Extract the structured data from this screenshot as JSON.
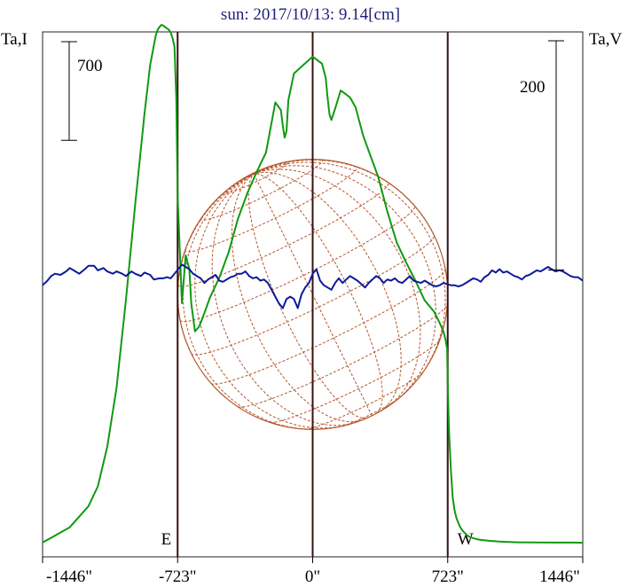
{
  "title": "sun: 2017/10/13: 9.14[cm]",
  "colors": {
    "intensity": "#119911",
    "polarization": "#0b1a9b",
    "disk": "#b5562c",
    "limb_lines": "#3a1010",
    "title": "#20207a"
  },
  "chart_data": {
    "type": "line",
    "title": "sun: 2017/10/13: 9.14[cm]",
    "xlim": [
      -1446,
      1446
    ],
    "x_tick_values": [
      -1446,
      -723,
      0,
      723,
      1446
    ],
    "x_tick_labels": [
      "-1446\"",
      "-723\"",
      "0\"",
      "723\"",
      "1446\""
    ],
    "left_axis_label": "Ta,I",
    "right_axis_label": "Ta,V",
    "left_scale_bar": {
      "label": "700",
      "value": 700
    },
    "right_scale_bar": {
      "label": "200",
      "value": 200
    },
    "vertical_markers": [
      {
        "x": -723,
        "label": "E"
      },
      {
        "x": 0,
        "label": ""
      },
      {
        "x": 723,
        "label": "W"
      }
    ],
    "grid": false,
    "series": [
      {
        "name": "Ta,I",
        "axis": "left",
        "color": "#119911",
        "ylim": [
          -100,
          3625
        ],
        "x": [
          -1446,
          -1400,
          -1300,
          -1200,
          -1150,
          -1100,
          -1050,
          -1000,
          -950,
          -900,
          -870,
          -850,
          -840,
          -830,
          -820,
          -810,
          -800,
          -790,
          -780,
          -770,
          -760,
          -750,
          -740,
          -730,
          -723,
          -700,
          -680,
          -660,
          -650,
          -630,
          -610,
          -600,
          -580,
          -550,
          -500,
          -450,
          -400,
          -350,
          -300,
          -250,
          -200,
          -170,
          -160,
          -150,
          -140,
          -130,
          -100,
          -50,
          0,
          50,
          70,
          80,
          90,
          100,
          120,
          150,
          170,
          200,
          230,
          250,
          270,
          300,
          350,
          400,
          450,
          500,
          550,
          600,
          650,
          680,
          700,
          710,
          720,
          723,
          730,
          740,
          750,
          760,
          770,
          780,
          790,
          800,
          810,
          820,
          830,
          840,
          860,
          880,
          900,
          950,
          1000,
          1050,
          1100,
          1200,
          1300,
          1400,
          1446
        ],
        "y": [
          2,
          35,
          110,
          260,
          400,
          680,
          1100,
          1720,
          2400,
          3050,
          3390,
          3530,
          3600,
          3640,
          3660,
          3675,
          3670,
          3660,
          3650,
          3640,
          3620,
          3580,
          3520,
          3150,
          2450,
          1700,
          2040,
          1940,
          1700,
          1500,
          1530,
          1560,
          1630,
          1740,
          1880,
          2060,
          2300,
          2480,
          2630,
          2770,
          3125,
          3070,
          2960,
          2875,
          2920,
          3140,
          3330,
          3390,
          3450,
          3400,
          3300,
          3160,
          3040,
          3000,
          3080,
          3210,
          3190,
          3160,
          3090,
          2990,
          2890,
          2780,
          2600,
          2350,
          2130,
          1990,
          1860,
          1720,
          1640,
          1560,
          1500,
          1450,
          1375,
          1120,
          800,
          520,
          320,
          230,
          175,
          140,
          110,
          90,
          75,
          62,
          50,
          42,
          33,
          25,
          20,
          13,
          8,
          5,
          3,
          2,
          1,
          1,
          0
        ]
      },
      {
        "name": "Ta,V",
        "axis": "right",
        "color": "#0b1a9b",
        "ylim": [
          -237,
          221
        ],
        "x": [
          -1446,
          -1420,
          -1400,
          -1380,
          -1350,
          -1320,
          -1300,
          -1270,
          -1250,
          -1220,
          -1200,
          -1170,
          -1150,
          -1120,
          -1100,
          -1070,
          -1050,
          -1020,
          -1000,
          -970,
          -950,
          -920,
          -900,
          -870,
          -850,
          -820,
          -800,
          -780,
          -760,
          -740,
          -720,
          -700,
          -680,
          -660,
          -640,
          -620,
          -600,
          -580,
          -560,
          -540,
          -520,
          -500,
          -480,
          -460,
          -440,
          -420,
          -400,
          -380,
          -360,
          -340,
          -320,
          -300,
          -280,
          -260,
          -240,
          -220,
          -200,
          -180,
          -160,
          -140,
          -120,
          -100,
          -80,
          -60,
          -40,
          -20,
          0,
          20,
          40,
          60,
          80,
          100,
          120,
          140,
          160,
          180,
          200,
          220,
          240,
          260,
          280,
          300,
          320,
          340,
          360,
          380,
          400,
          420,
          440,
          460,
          480,
          500,
          520,
          540,
          560,
          580,
          600,
          620,
          640,
          660,
          680,
          700,
          720,
          740,
          760,
          780,
          800,
          820,
          840,
          860,
          880,
          900,
          920,
          940,
          960,
          980,
          1000,
          1020,
          1040,
          1060,
          1080,
          1100,
          1120,
          1140,
          1160,
          1180,
          1200,
          1220,
          1240,
          1260,
          1280,
          1300,
          1320,
          1340,
          1360,
          1380,
          1400,
          1420,
          1446
        ],
        "y": [
          0,
          4,
          8,
          10,
          9,
          12,
          15,
          12,
          10,
          14,
          17,
          17,
          13,
          15,
          12,
          10,
          12,
          10,
          8,
          12,
          10,
          8,
          11,
          9,
          5,
          6,
          6,
          7,
          6,
          10,
          14,
          18,
          16,
          14,
          10,
          8,
          6,
          2,
          5,
          7,
          9,
          4,
          3,
          5,
          7,
          8,
          10,
          10,
          12,
          8,
          6,
          7,
          4,
          5,
          2,
          -4,
          -10,
          -16,
          -20,
          -12,
          -10,
          -12,
          -20,
          -8,
          -2,
          2,
          10,
          14,
          4,
          0,
          -2,
          -4,
          2,
          6,
          2,
          5,
          8,
          6,
          4,
          1,
          -2,
          2,
          5,
          8,
          6,
          2,
          5,
          4,
          6,
          3,
          2,
          5,
          8,
          4,
          3,
          2,
          4,
          2,
          0,
          -1,
          0,
          2,
          1,
          0,
          0,
          -1,
          0,
          2,
          4,
          6,
          5,
          3,
          7,
          9,
          13,
          11,
          14,
          11,
          12,
          10,
          8,
          7,
          5,
          8,
          9,
          11,
          13,
          12,
          14,
          16,
          14,
          12,
          13,
          12,
          10,
          8,
          7,
          7,
          4
        ]
      }
    ]
  }
}
